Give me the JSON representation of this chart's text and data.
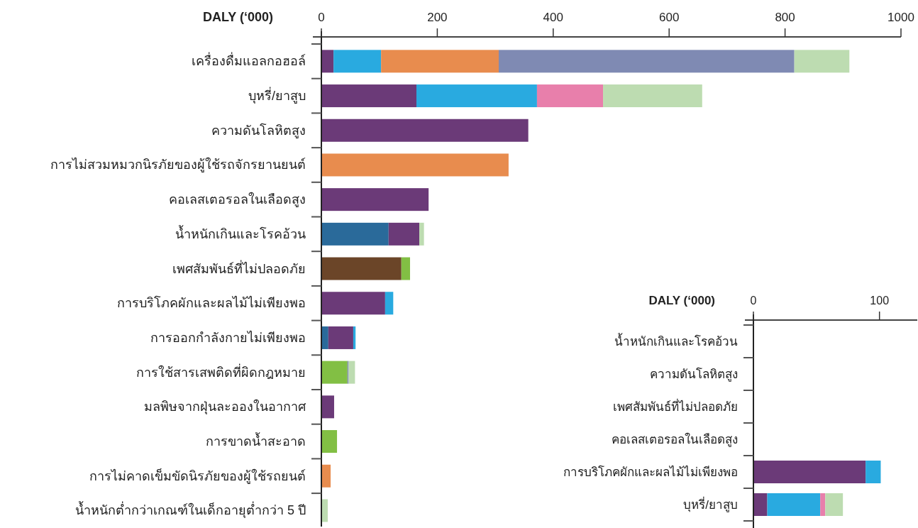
{
  "chart_data": [
    {
      "type": "bar",
      "orientation": "horizontal",
      "stacked": true,
      "xlabel": "DALY (‘000)",
      "xlim": [
        0,
        1000
      ],
      "xticks": [
        0,
        200,
        400,
        600,
        800,
        1000
      ],
      "categories": [
        "เครื่องดื่มแอลกอฮอล์",
        "บุหรี่/ยาสูบ",
        "ความดันโลหิตสูง",
        "การไม่สวมหมวกนิรภัยของผู้ใช้รถจักรยานยนต์",
        "คอเลสเตอรอลในเลือดสูง",
        "น้ำหนักเกินและโรคอ้วน",
        "เพศสัมพันธ์ที่ไม่ปลอดภัย",
        "การบริโภคผักและผลไม้ไม่เพียงพอ",
        "การออกกำลังกายไม่เพียงพอ",
        "การใช้สารเสพติดที่ผิดกฎหมาย",
        "มลพิษจากฝุ่นละอองในอากาศ",
        "การขาดน้ำสะอาด",
        "การไม่คาดเข็มขัดนิรภัยของผู้ใช้รถยนต์",
        "น้ำหนักต่ำกว่าเกณฑ์ในเด็กอายุต่ำกว่า 5 ปี"
      ],
      "series": [
        {
          "color": "#2a6a9a",
          "values": [
            null,
            null,
            null,
            null,
            null,
            116,
            null,
            null,
            12,
            null,
            null,
            null,
            null,
            null
          ]
        },
        {
          "color": "#6b4528",
          "values": [
            null,
            null,
            null,
            null,
            null,
            null,
            138,
            null,
            null,
            null,
            null,
            null,
            null,
            null
          ]
        },
        {
          "color": "#82bf44",
          "values": [
            null,
            null,
            null,
            null,
            null,
            null,
            15,
            null,
            null,
            45,
            null,
            27,
            null,
            null
          ]
        },
        {
          "color": "#6b3a78",
          "values": [
            21,
            164,
            357,
            null,
            185,
            53,
            null,
            110,
            43,
            null,
            22,
            null,
            null,
            null
          ]
        },
        {
          "color": "#29aae0",
          "values": [
            82,
            208,
            null,
            null,
            null,
            null,
            null,
            14,
            4,
            null,
            null,
            null,
            null,
            null
          ]
        },
        {
          "color": "#e88c4e",
          "values": [
            203,
            null,
            null,
            323,
            null,
            null,
            null,
            null,
            null,
            null,
            null,
            null,
            16,
            null
          ]
        },
        {
          "color": "#7f8ab3",
          "values": [
            510,
            null,
            null,
            null,
            null,
            null,
            null,
            null,
            null,
            2,
            null,
            null,
            null,
            null
          ]
        },
        {
          "color": "#e87fab",
          "values": [
            null,
            114,
            null,
            null,
            null,
            null,
            null,
            null,
            null,
            null,
            null,
            null,
            null,
            null
          ]
        },
        {
          "color": "#bddcb1",
          "values": [
            95,
            171,
            null,
            null,
            null,
            8,
            null,
            null,
            null,
            11,
            null,
            null,
            null,
            11
          ]
        }
      ]
    },
    {
      "type": "bar",
      "orientation": "horizontal",
      "stacked": true,
      "xlabel": "DALY (‘000)",
      "xlim": [
        0,
        130
      ],
      "xticks": [
        0,
        100
      ],
      "categories": [
        "น้ำหนักเกินและโรคอ้วน",
        "ความดันโลหิตสูง",
        "เพศสัมพันธ์ที่ไม่ปลอดภัย",
        "คอเลสเตอรอลในเลือดสูง",
        "การบริโภคผักและผลไม้ไม่เพียงพอ",
        "บุหรี่/ยาสูบ"
      ],
      "series": [
        {
          "color": "#6b3a78",
          "values": [
            null,
            null,
            null,
            null,
            89,
            11
          ]
        },
        {
          "color": "#29aae0",
          "values": [
            null,
            null,
            null,
            null,
            12,
            42
          ]
        },
        {
          "color": "#e87fab",
          "values": [
            null,
            null,
            null,
            null,
            null,
            4
          ]
        },
        {
          "color": "#bddcb1",
          "values": [
            null,
            null,
            null,
            null,
            null,
            14
          ]
        }
      ]
    }
  ]
}
